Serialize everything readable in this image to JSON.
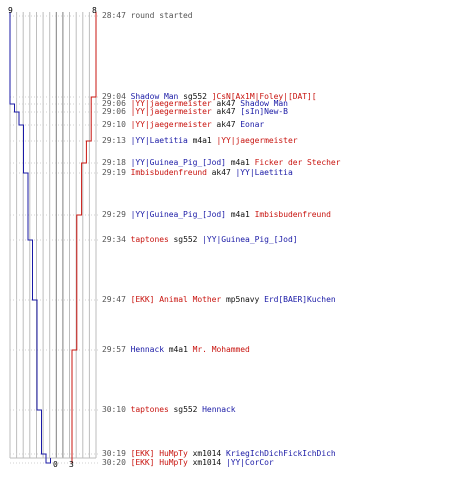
{
  "colors": {
    "blue": "#1a1aa6",
    "red": "#c8140f",
    "text": "#555555",
    "grid": "#bdbdbd",
    "grid_dark": "#7f7f7f"
  },
  "scores": {
    "blue_start": "9",
    "red_start": "8",
    "blue_end": "0",
    "red_end": "3"
  },
  "events": [
    {
      "time": "28:47",
      "kind": "message",
      "text": "round started"
    },
    {
      "time": "29:04",
      "killer": "Shadow Man",
      "killer_team": "blue",
      "weapon": "sg552",
      "victim": "]CsN[Ax1M|Foley|[DAT][",
      "victim_team": "red"
    },
    {
      "time": "29:06",
      "killer": "|YY|jaegermeister",
      "killer_team": "red",
      "weapon": "ak47",
      "victim": "Shadow Man",
      "victim_team": "blue"
    },
    {
      "time": "29:06",
      "killer": "|YY|jaegermeister",
      "killer_team": "red",
      "weapon": "ak47",
      "victim": "[sIn]New-B",
      "victim_team": "blue"
    },
    {
      "time": "29:10",
      "killer": "|YY|jaegermeister",
      "killer_team": "red",
      "weapon": "ak47",
      "victim": "Eonar",
      "victim_team": "blue"
    },
    {
      "time": "29:13",
      "killer": "|YY|Laetitia",
      "killer_team": "blue",
      "weapon": "m4a1",
      "victim": "|YY|jaegermeister",
      "victim_team": "red"
    },
    {
      "time": "29:18",
      "killer": "|YY|Guinea_Pig_[Jod]",
      "killer_team": "blue",
      "weapon": "m4a1",
      "victim": "Ficker der Stecher",
      "victim_team": "red"
    },
    {
      "time": "29:19",
      "killer": "Imbisbudenfreund",
      "killer_team": "red",
      "weapon": "ak47",
      "victim": "|YY|Laetitia",
      "victim_team": "blue"
    },
    {
      "time": "29:29",
      "killer": "|YY|Guinea_Pig_[Jod]",
      "killer_team": "blue",
      "weapon": "m4a1",
      "victim": "Imbisbudenfreund",
      "victim_team": "red"
    },
    {
      "time": "29:34",
      "killer": "taptones",
      "killer_team": "red",
      "weapon": "sg552",
      "victim": "|YY|Guinea_Pig_[Jod]",
      "victim_team": "blue"
    },
    {
      "time": "29:47",
      "killer": "[EKK] Animal Mother",
      "killer_team": "red",
      "weapon": "mp5navy",
      "victim": "Erd[BAER]Kuchen",
      "victim_team": "blue"
    },
    {
      "time": "29:57",
      "killer": "Hennack",
      "killer_team": "blue",
      "weapon": "m4a1",
      "victim": "Mr. Mohammed",
      "victim_team": "red"
    },
    {
      "time": "30:10",
      "killer": "taptones",
      "killer_team": "red",
      "weapon": "sg552",
      "victim": "Hennack",
      "victim_team": "blue"
    },
    {
      "time": "30:19",
      "killer": "[EKK] HuMpTy",
      "killer_team": "red",
      "weapon": "xm1014",
      "victim": "KriegIchDichFickIchDich",
      "victim_team": "blue"
    },
    {
      "time": "30:20",
      "killer": "[EKK] HuMpTy",
      "killer_team": "red",
      "weapon": "xm1014",
      "victim": "|YY|CorCor",
      "victim_team": "blue"
    }
  ],
  "team_counts": {
    "blue": [
      9,
      9,
      8,
      7,
      6,
      6,
      6,
      5,
      5,
      4,
      3,
      3,
      2,
      1,
      0
    ],
    "red": [
      8,
      7,
      7,
      7,
      7,
      6,
      5,
      5,
      4,
      4,
      4,
      3,
      3,
      3,
      3
    ]
  }
}
